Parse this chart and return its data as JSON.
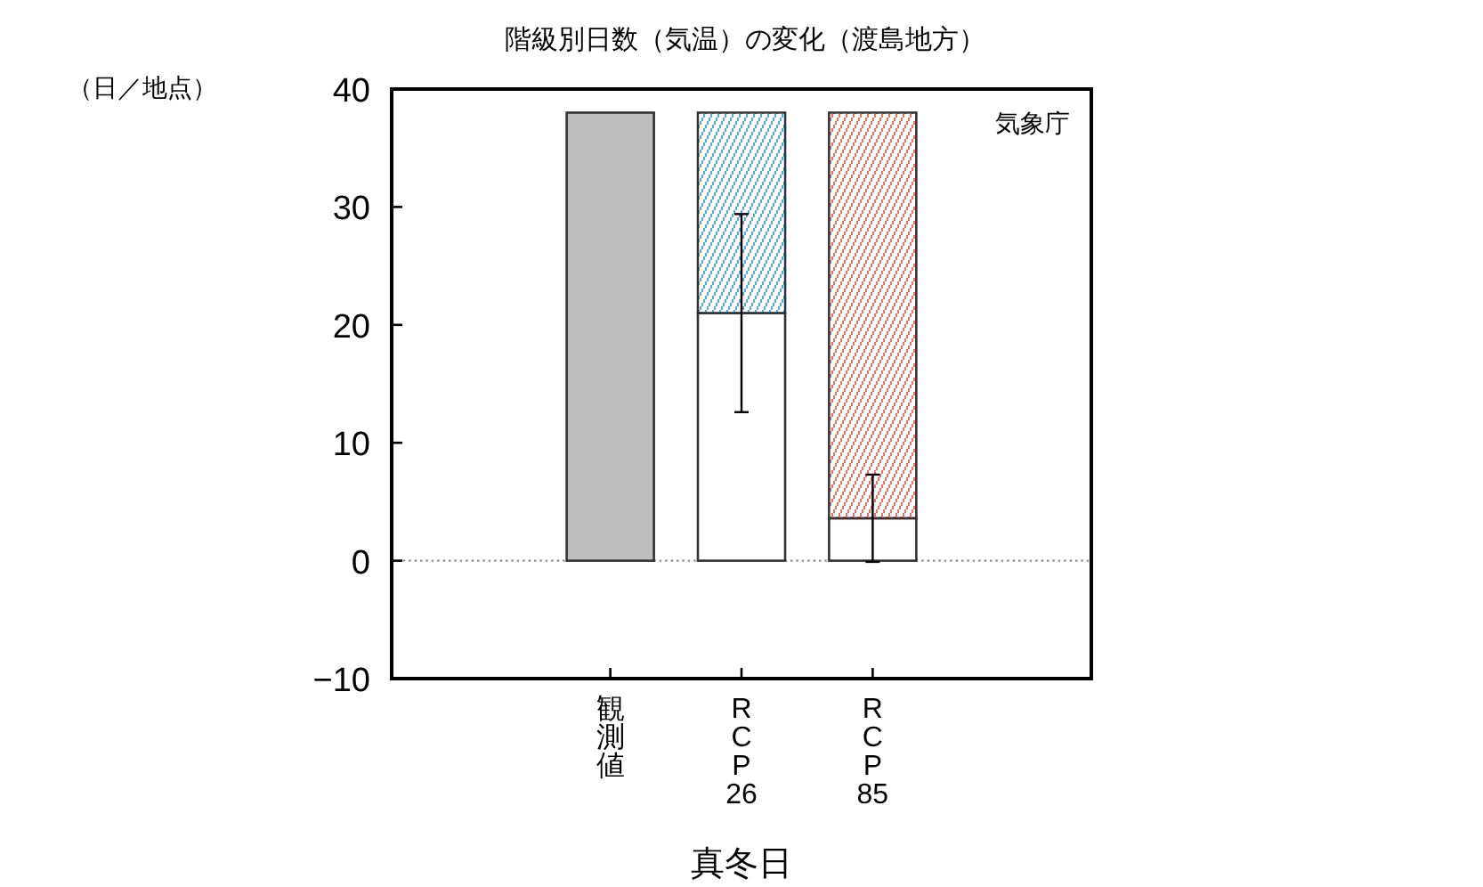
{
  "chart_data": {
    "type": "bar",
    "title": "階級別日数（気温）の変化（渡島地方）",
    "ylabel": "（日／地点）",
    "xlabel": "真冬日",
    "annotations": [
      "気象庁"
    ],
    "categories": [
      "観測値",
      "RCP26",
      "RCP85"
    ],
    "stacked": true,
    "series": [
      {
        "color": "#bebebe",
        "values": [
          38,
          null,
          null
        ]
      },
      {
        "color": "#ffffff",
        "values": [
          null,
          21,
          3.6
        ],
        "errors": [
          null,
          8.4,
          3.7
        ]
      },
      {
        "colors": [
          null,
          "#5aa5d8",
          "#e8705a"
        ],
        "values": [
          null,
          17,
          34.4
        ]
      }
    ],
    "ylim": [
      -10,
      40
    ],
    "yticks": [
      -10,
      0,
      10,
      20,
      30,
      40
    ],
    "ref_lines": [
      {
        "axis": "y",
        "value": 0,
        "color": "#808080",
        "line_style": "dotted"
      }
    ]
  }
}
